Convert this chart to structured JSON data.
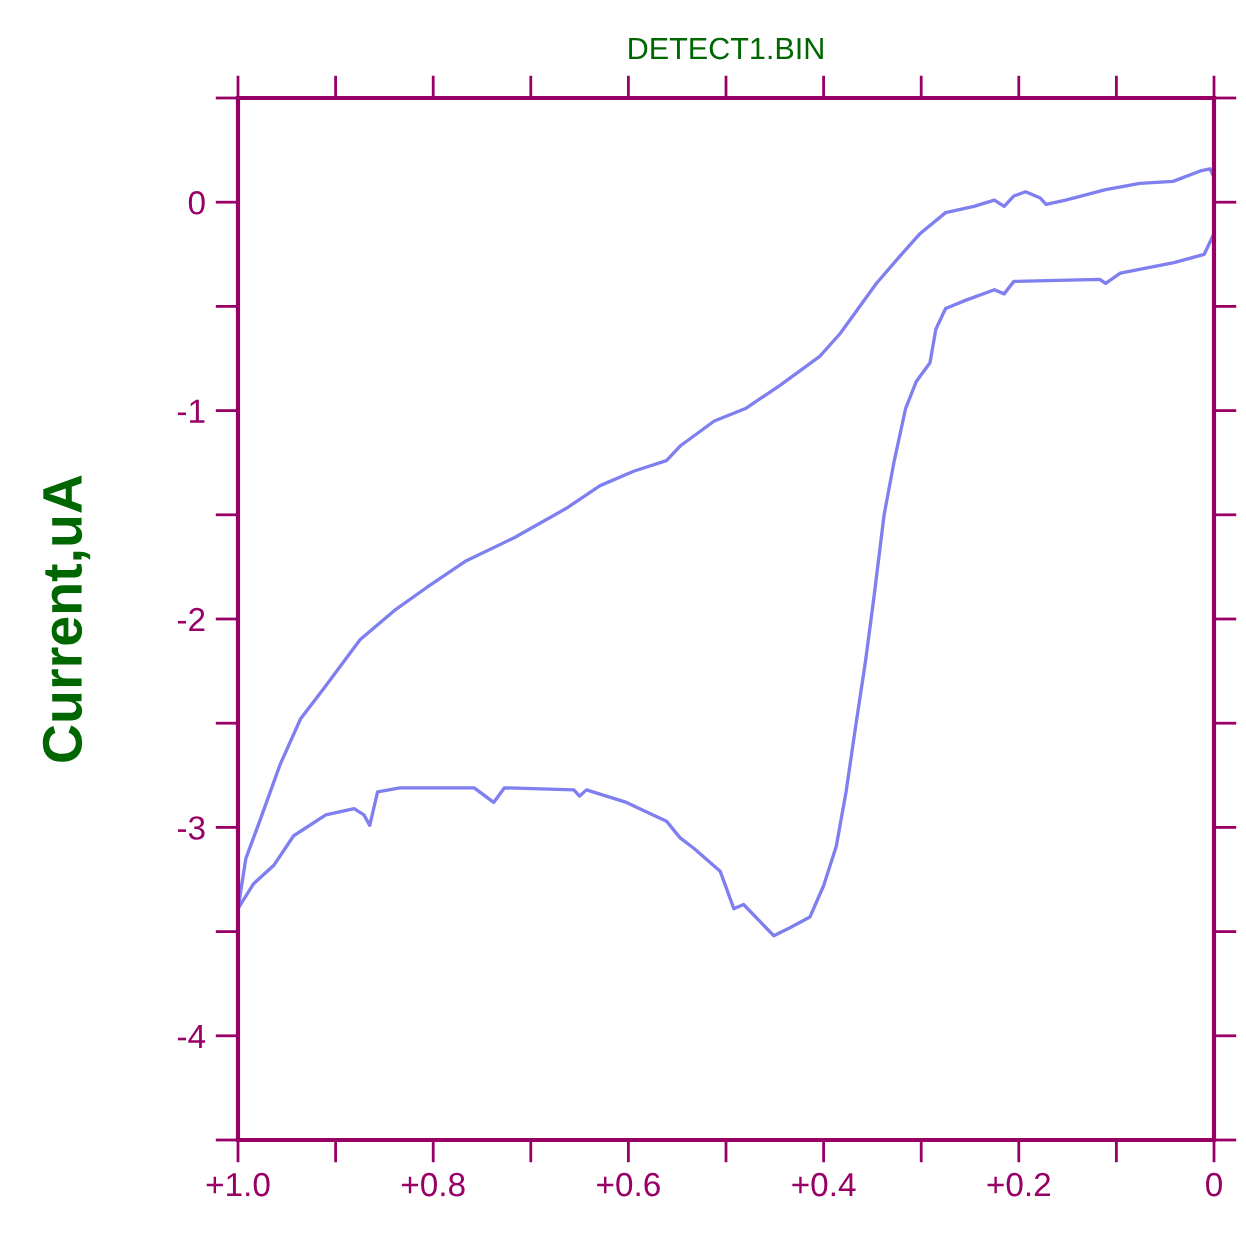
{
  "chart_data": {
    "type": "line",
    "title": "DETECT1.BIN",
    "ylabel": "Current,uA",
    "xlim": [
      1.0,
      0
    ],
    "ylim": [
      -4.5,
      0.5
    ],
    "xticks": [
      {
        "value": 1.0,
        "label": "+1.0"
      },
      {
        "value": 0.9,
        "label": null
      },
      {
        "value": 0.8,
        "label": "+0.8"
      },
      {
        "value": 0.7,
        "label": null
      },
      {
        "value": 0.6,
        "label": "+0.6"
      },
      {
        "value": 0.5,
        "label": null
      },
      {
        "value": 0.4,
        "label": "+0.4"
      },
      {
        "value": 0.3,
        "label": null
      },
      {
        "value": 0.2,
        "label": "+0.2"
      },
      {
        "value": 0.1,
        "label": null
      },
      {
        "value": 0,
        "label": "0"
      }
    ],
    "yticks": [
      {
        "value": -4.5,
        "label": null
      },
      -4,
      {
        "value": -3.5,
        "label": null
      },
      -3,
      {
        "value": -2.5,
        "label": null
      },
      -2,
      {
        "value": -1.5,
        "label": null
      },
      -1,
      {
        "value": -0.5,
        "label": null
      },
      0,
      {
        "value": 0.5,
        "label": null
      }
    ],
    "grid": false,
    "marker": "none",
    "line_style": "solid",
    "series": [
      {
        "color": "#7f7ff0",
        "x": [
          0.0,
          0.004,
          0.014,
          0.042,
          0.076,
          0.111,
          0.152,
          0.172,
          0.178,
          0.193,
          0.205,
          0.215,
          0.225,
          0.246,
          0.275,
          0.301,
          0.322,
          0.346,
          0.363,
          0.383,
          0.404,
          0.445,
          0.48,
          0.512,
          0.547,
          0.561,
          0.594,
          0.629,
          0.664,
          0.717,
          0.766,
          0.807,
          0.84,
          0.875,
          0.91,
          0.936,
          0.957,
          0.977,
          0.992,
          1.0,
          0.984,
          0.963,
          0.943,
          0.91,
          0.881,
          0.871,
          0.865,
          0.857,
          0.834,
          0.758,
          0.738,
          0.727,
          0.656,
          0.65,
          0.643,
          0.602,
          0.561,
          0.547,
          0.533,
          0.506,
          0.492,
          0.482,
          0.451,
          0.434,
          0.414,
          0.4,
          0.387,
          0.377,
          0.367,
          0.357,
          0.348,
          0.338,
          0.328,
          0.316,
          0.305,
          0.291,
          0.285,
          0.275,
          0.254,
          0.225,
          0.215,
          0.205,
          0.117,
          0.111,
          0.096,
          0.041,
          0.01,
          0.0
        ],
        "values": [
          0.12,
          0.16,
          0.15,
          0.1,
          0.09,
          0.06,
          0.01,
          -0.01,
          0.02,
          0.05,
          0.03,
          -0.02,
          0.01,
          -0.02,
          -0.05,
          -0.15,
          -0.26,
          -0.39,
          -0.5,
          -0.63,
          -0.74,
          -0.88,
          -0.99,
          -1.05,
          -1.17,
          -1.24,
          -1.29,
          -1.36,
          -1.47,
          -1.61,
          -1.72,
          -1.85,
          -1.96,
          -2.1,
          -2.32,
          -2.48,
          -2.7,
          -2.96,
          -3.15,
          -3.39,
          -3.27,
          -3.18,
          -3.04,
          -2.94,
          -2.91,
          -2.94,
          -2.99,
          -2.83,
          -2.81,
          -2.81,
          -2.88,
          -2.81,
          -2.82,
          -2.85,
          -2.82,
          -2.88,
          -2.97,
          -3.05,
          -3.1,
          -3.21,
          -3.39,
          -3.37,
          -3.52,
          -3.48,
          -3.43,
          -3.28,
          -3.09,
          -2.83,
          -2.51,
          -2.2,
          -1.88,
          -1.5,
          -1.25,
          -0.99,
          -0.86,
          -0.77,
          -0.61,
          -0.51,
          -0.47,
          -0.42,
          -0.44,
          -0.38,
          -0.37,
          -0.39,
          -0.34,
          -0.29,
          -0.25,
          -0.15
        ]
      }
    ]
  }
}
